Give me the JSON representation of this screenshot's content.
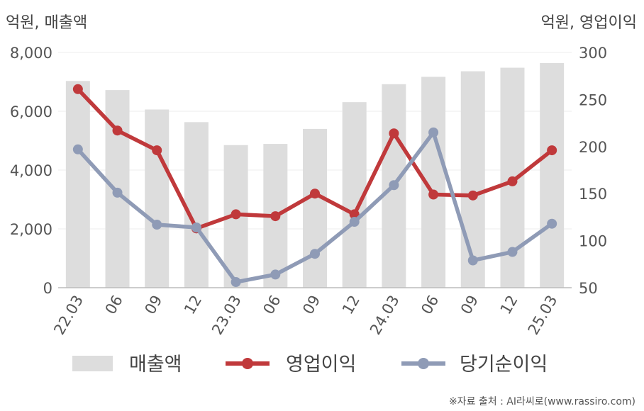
{
  "chart_data": {
    "type": "bar",
    "left_unit": "억원, 매출액",
    "right_unit": "억원, 영업이익",
    "categories": [
      "22.03",
      "06",
      "09",
      "12",
      "23.03",
      "06",
      "09",
      "12",
      "24.03",
      "06",
      "09",
      "12",
      "25.03"
    ],
    "left_axis": {
      "min": 0,
      "max": 8000,
      "ticks": [
        "0",
        "2,000",
        "4,000",
        "6,000",
        "8,000"
      ],
      "tick_values": [
        0,
        2000,
        4000,
        6000,
        8000
      ]
    },
    "right_axis": {
      "min": 50,
      "max": 300,
      "ticks": [
        "50",
        "100",
        "150",
        "200",
        "250",
        "300"
      ],
      "tick_values": [
        50,
        100,
        150,
        200,
        250,
        300
      ]
    },
    "series": [
      {
        "name": "매출액",
        "type": "bar",
        "axis": "left",
        "color": "#dddddd",
        "values": [
          7030,
          6720,
          6060,
          5630,
          4850,
          4890,
          5400,
          6310,
          6920,
          7170,
          7360,
          7480,
          7640
        ]
      },
      {
        "name": "영업이익",
        "type": "line",
        "axis": "right",
        "color": "#c0393b",
        "values": [
          261,
          217,
          196,
          113,
          128,
          126,
          150,
          128,
          214,
          149,
          148,
          163,
          196
        ]
      },
      {
        "name": "당기순이익",
        "type": "line",
        "axis": "right",
        "color": "#8f9bb6",
        "values": [
          197,
          151,
          117,
          114,
          56,
          64,
          86,
          120,
          159,
          215,
          79,
          88,
          118
        ]
      }
    ],
    "grid": true,
    "legend_position": "bottom",
    "source": "※자료 출처 : AI라씨로(www.rassiro.com)"
  }
}
